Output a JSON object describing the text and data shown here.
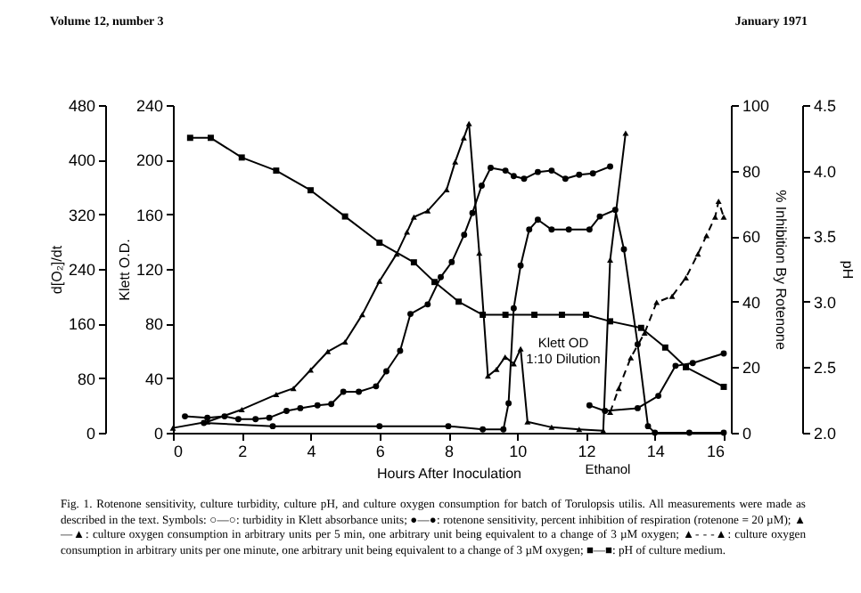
{
  "chart_data": [
    {
      "type": "line",
      "xlabel": "Hours After Inoculation",
      "ylabel": "d[O₂]/dt",
      "y2label": "Klett O.D.",
      "xlim": [
        0,
        16
      ],
      "xticks": [
        0,
        2,
        4,
        6,
        8,
        10,
        12,
        14,
        16
      ],
      "ylim": [
        0,
        480
      ],
      "yticks": [
        0,
        80,
        160,
        240,
        320,
        400,
        480
      ],
      "y2lim": [
        0,
        240
      ],
      "y2ticks": [
        0,
        40,
        80,
        120,
        160,
        200,
        240
      ],
      "series": [
        {
          "color": "#000000",
          "marker": "triangle",
          "x": [
            0,
            1,
            2,
            3,
            3.5,
            4,
            4.5,
            5,
            5.5,
            6,
            6.5,
            6.8,
            7,
            7.4,
            7.95,
            8.2,
            8.45,
            8.6,
            8.9,
            9.15,
            9.4,
            9.65,
            9.9,
            10.1,
            10.3,
            11,
            11.8,
            12.5,
            12.7,
            13.15
          ],
          "values": [
            7,
            16,
            34,
            56,
            65,
            92,
            119,
            133,
            173,
            222,
            262,
            294,
            316,
            325,
            356,
            397,
            432,
            453,
            263,
            83,
            93,
            111,
            101,
            123,
            16,
            8,
            5,
            3,
            253,
            439
          ]
        },
        {
          "color": "#000000",
          "marker": "triangle",
          "line_style": "dashed",
          "x": [
            12.7,
            12.95,
            13.3,
            13.7,
            14.05,
            14.5,
            14.9,
            15.25,
            15.5,
            15.75,
            15.85,
            16
          ],
          "values": [
            30,
            65,
            110,
            146,
            191,
            200,
            227,
            262,
            289,
            316,
            339,
            316
          ]
        },
        {
          "color": "#000000",
          "marker": "circle",
          "axis": "y2",
          "x": [
            0.35,
            1,
            1.5,
            1.9,
            2.4,
            2.8,
            3.3,
            3.7,
            4.2,
            4.6,
            4.95,
            5.4,
            5.9,
            6.2,
            6.6,
            6.9,
            7.4,
            7.78,
            8.1,
            8.46,
            8.7,
            8.97,
            9.23,
            9.66,
            9.9,
            10.2,
            10.6,
            11,
            11.4,
            11.8,
            12.2,
            12.7
          ],
          "values": [
            12,
            11,
            12,
            10,
            10,
            11,
            16,
            18,
            20,
            21,
            30,
            30,
            34,
            45,
            60,
            87,
            94,
            114,
            125,
            145,
            161,
            181,
            194,
            192,
            188,
            186,
            191,
            192,
            186,
            189,
            190,
            195
          ]
        },
        {
          "color": "#000000",
          "marker": "circle",
          "axis": "y2",
          "x": [
            12.1,
            12.55,
            13.5,
            14.1,
            14.6,
            15.1,
            16
          ],
          "values": [
            20,
            16,
            18,
            27,
            49,
            51,
            58
          ]
        }
      ],
      "annotations": [
        "Volume 12, number 3",
        "January 1971",
        "Fig. 1. Rotenone sensitivity, culture turbidity, culture pH, and culture oxygen consumption for batch of Torulopsis utilis. All measurements were made as described in the text. Symbols: ○—○: turbidity in Klett absorbance units; ●—●: rotenone sensitivity, percent inhibition of respiration (rotenone = 20 µM); ▲—▲: culture oxygen consumption in arbitrary units per 5 min, one arbitrary unit being equivalent to a change of 3 µM oxygen; ▲- - -▲: culture oxygen consumption in arbitrary units per one minute, one arbitrary unit being equivalent to a change of 3 µM oxygen; ■—■: pH of culture medium.",
        "Klett OD 1:10 Dilution",
        "Ethanol"
      ]
    },
    {
      "type": "line",
      "ylabel": "% Inhibition By Rotenone",
      "y2label": "pH",
      "tick_labels": "y",
      "xlim": [
        0,
        16
      ],
      "xticks": [
        0,
        2,
        4,
        6,
        8,
        10,
        12,
        14,
        16
      ],
      "ylim": [
        0,
        100
      ],
      "yticks": [
        0,
        20,
        40,
        60,
        80,
        100
      ],
      "y2lim": [
        2,
        4.5
      ],
      "y2ticks": [
        {
          "value": 2,
          "label": "2.0"
        },
        {
          "value": 2.5,
          "label": "2.5"
        },
        {
          "value": 3,
          "label": "3.0"
        },
        {
          "value": 3.5,
          "label": "3.5"
        },
        {
          "value": 4,
          "label": "4.0"
        },
        {
          "value": 4.5,
          "label": "4.5"
        }
      ],
      "series": [
        {
          "color": "#000000",
          "marker": "circle",
          "x": [
            0.9,
            2.9,
            6,
            8,
            9,
            9.6,
            9.75,
            9.9,
            10.1,
            10.35,
            10.6,
            11,
            11.5,
            12.1,
            12.4,
            12.85,
            13.1,
            13.5,
            13.8,
            14,
            15,
            16
          ],
          "values": [
            3,
            2,
            2,
            2,
            1,
            1,
            9,
            38,
            51,
            62,
            65,
            62,
            62,
            62,
            66,
            68,
            56,
            27,
            2,
            0,
            0,
            0
          ]
        },
        {
          "color": "#000000",
          "marker": "square",
          "axis": "y2",
          "x": [
            0.5,
            1.1,
            2,
            3,
            4,
            5,
            6,
            7,
            7.6,
            8.3,
            9,
            9.66,
            10.5,
            11.3,
            12,
            12.7,
            13.6,
            14.3,
            14.9,
            16
          ],
          "values": [
            4.25,
            4.25,
            4.1,
            4.0,
            3.85,
            3.65,
            3.45,
            3.3,
            3.15,
            3.0,
            2.9,
            2.9,
            2.9,
            2.9,
            2.9,
            2.85,
            2.8,
            2.65,
            2.5,
            2.35
          ]
        }
      ]
    }
  ]
}
